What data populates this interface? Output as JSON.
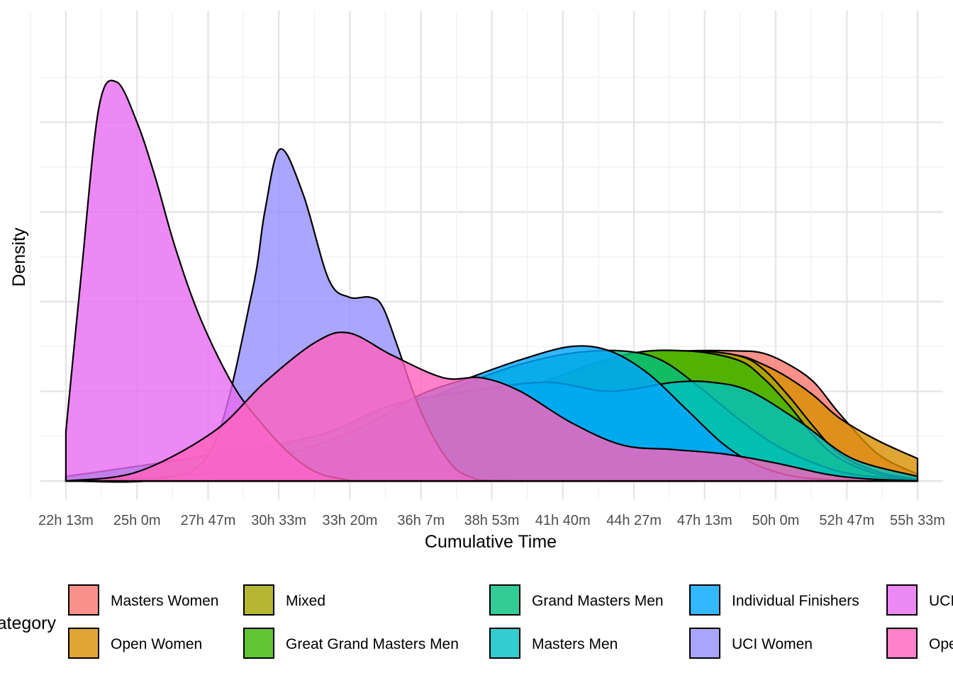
{
  "chart_data": {
    "type": "area",
    "subtype": "density",
    "title": "",
    "xlabel": "Cumulative Time",
    "ylabel": "Density",
    "x_unit": "hours",
    "xlim": [
      21.22,
      56.55
    ],
    "ylim": [
      0,
      1.0
    ],
    "y_tick_labels_shown": false,
    "grid": true,
    "x_ticks": [
      {
        "value": 22.2167,
        "label": "22h 13m"
      },
      {
        "value": 25.0,
        "label": "25h 0m"
      },
      {
        "value": 27.7833,
        "label": "27h 47m"
      },
      {
        "value": 30.55,
        "label": "30h 33m"
      },
      {
        "value": 33.3333,
        "label": "33h 20m"
      },
      {
        "value": 36.1167,
        "label": "36h 7m"
      },
      {
        "value": 38.8833,
        "label": "38h 53m"
      },
      {
        "value": 41.6667,
        "label": "41h 40m"
      },
      {
        "value": 44.45,
        "label": "44h 27m"
      },
      {
        "value": 47.2167,
        "label": "47h 13m"
      },
      {
        "value": 50.0,
        "label": "50h 0m"
      },
      {
        "value": 52.7833,
        "label": "52h 47m"
      },
      {
        "value": 55.55,
        "label": "55h 33m"
      }
    ],
    "legend": {
      "title": "Category",
      "placement": "bottom",
      "columns": [
        [
          "Masters Women",
          "Open Women"
        ],
        [
          "Mixed",
          "Great Grand Masters Men"
        ],
        [
          "Grand Masters Men",
          "Masters Men"
        ],
        [
          "Individual Finishers",
          "UCI Women"
        ],
        [
          "UCI Men",
          "Open Men"
        ]
      ]
    },
    "fill_opacity": 0.8,
    "series": [
      {
        "name": "Masters Women",
        "color": "#F8766D",
        "x": [
          22.2167,
          30.0,
          36.0,
          40.0,
          44.0,
          46.5,
          48.5,
          49.5,
          50.5,
          51.5,
          52.5,
          54.0,
          55.55
        ],
        "y": [
          0.0,
          0.02,
          0.1,
          0.2,
          0.28,
          0.29,
          0.29,
          0.285,
          0.26,
          0.22,
          0.15,
          0.06,
          0.015
        ]
      },
      {
        "name": "Open Women",
        "color": "#D89000",
        "x": [
          22.2167,
          30.0,
          36.0,
          40.0,
          44.0,
          46.5,
          48.5,
          49.5,
          50.5,
          51.5,
          52.5,
          54.0,
          55.55
        ],
        "y": [
          0.0,
          0.02,
          0.1,
          0.2,
          0.28,
          0.29,
          0.28,
          0.26,
          0.23,
          0.19,
          0.14,
          0.09,
          0.05
        ]
      },
      {
        "name": "Mixed",
        "color": "#A3A500",
        "x": [
          22.2167,
          30.0,
          36.0,
          40.0,
          44.0,
          46.5,
          48.5,
          49.5,
          50.5,
          51.5,
          52.5,
          54.0,
          55.55
        ],
        "y": [
          0.0,
          0.02,
          0.1,
          0.2,
          0.28,
          0.29,
          0.28,
          0.25,
          0.19,
          0.12,
          0.06,
          0.02,
          0.004
        ]
      },
      {
        "name": "Great Grand Masters Men",
        "color": "#39B600",
        "x": [
          22.2167,
          30.0,
          36.0,
          40.0,
          44.0,
          46.5,
          48.5,
          49.5,
          50.5,
          51.5,
          52.5,
          54.0,
          55.55
        ],
        "y": [
          0.0,
          0.02,
          0.1,
          0.2,
          0.28,
          0.29,
          0.27,
          0.23,
          0.17,
          0.1,
          0.05,
          0.015,
          0.003
        ]
      },
      {
        "name": "Grand Masters Men",
        "color": "#00BF7D",
        "x": [
          22.2167,
          28.0,
          33.0,
          36.0,
          38.0,
          40.0,
          42.0,
          44.0,
          45.5,
          47.0,
          48.5,
          50.0,
          51.5,
          53.0,
          55.55
        ],
        "y": [
          0.0,
          0.01,
          0.06,
          0.17,
          0.22,
          0.26,
          0.285,
          0.29,
          0.27,
          0.21,
          0.14,
          0.08,
          0.04,
          0.015,
          0.002
        ]
      },
      {
        "name": "Masters Men",
        "color": "#00BFC4",
        "x": [
          22.2167,
          27.0,
          32.0,
          35.0,
          38.0,
          41.0,
          43.5,
          46.0,
          47.5,
          49.0,
          51.0,
          53.0,
          55.55
        ],
        "y": [
          0.01,
          0.05,
          0.1,
          0.17,
          0.2,
          0.22,
          0.2,
          0.22,
          0.22,
          0.2,
          0.13,
          0.05,
          0.01
        ]
      },
      {
        "name": "Individual Finishers",
        "color": "#00A5FF",
        "x": [
          22.2167,
          28.0,
          33.0,
          36.0,
          38.0,
          40.0,
          42.0,
          43.5,
          45.0,
          46.5,
          48.0,
          49.5,
          51.5,
          55.55
        ],
        "y": [
          0.0,
          0.02,
          0.1,
          0.19,
          0.23,
          0.27,
          0.3,
          0.29,
          0.24,
          0.16,
          0.08,
          0.03,
          0.005,
          0.0
        ]
      },
      {
        "name": "UCI Women",
        "color": "#9590FF",
        "x": [
          22.2167,
          26.0,
          28.0,
          29.5,
          30.0,
          30.6,
          31.5,
          32.5,
          33.3,
          34.1,
          34.6,
          35.2,
          36.0,
          37.0,
          38.0,
          40.0,
          55.55
        ],
        "y": [
          0.0,
          0.005,
          0.08,
          0.42,
          0.6,
          0.74,
          0.64,
          0.45,
          0.41,
          0.41,
          0.39,
          0.3,
          0.17,
          0.06,
          0.01,
          0.0,
          0.0
        ]
      },
      {
        "name": "UCI Men",
        "color": "#E76BF3",
        "x": [
          22.2167,
          22.8,
          23.5,
          24.2,
          25.0,
          25.7,
          26.5,
          27.5,
          28.8,
          30.0,
          31.0,
          32.0,
          33.0,
          34.0,
          55.55
        ],
        "y": [
          0.11,
          0.45,
          0.83,
          0.89,
          0.8,
          0.68,
          0.52,
          0.36,
          0.21,
          0.12,
          0.06,
          0.02,
          0.005,
          0.0,
          0.0
        ]
      },
      {
        "name": "Open Men",
        "color": "#FF62BC",
        "x": [
          22.2167,
          25.0,
          28.0,
          30.0,
          32.0,
          33.3,
          35.0,
          37.0,
          38.5,
          40.0,
          42.0,
          44.0,
          46.0,
          48.0,
          50.0,
          52.0,
          53.5,
          55.55
        ],
        "y": [
          0.0,
          0.02,
          0.11,
          0.22,
          0.31,
          0.33,
          0.28,
          0.23,
          0.23,
          0.2,
          0.13,
          0.08,
          0.07,
          0.06,
          0.04,
          0.015,
          0.005,
          0.0
        ]
      }
    ]
  }
}
